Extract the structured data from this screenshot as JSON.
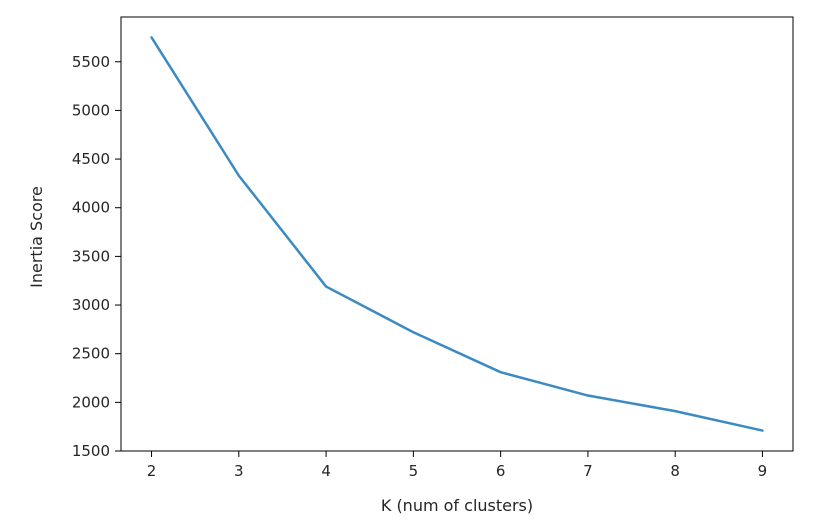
{
  "chart_data": {
    "type": "line",
    "title": "",
    "xlabel": "K (num of clusters)",
    "ylabel": "Inertia Score",
    "x": [
      2,
      3,
      4,
      5,
      6,
      7,
      8,
      9
    ],
    "series": [
      {
        "values": [
          5750,
          4330,
          3190,
          2720,
          2310,
          2070,
          1910,
          1710
        ],
        "color": "#3b8bc2"
      }
    ],
    "xlim": [
      1.65,
      9.35
    ],
    "ylim": [
      1500,
      5960
    ],
    "xticks": [
      2,
      3,
      4,
      5,
      6,
      7,
      8,
      9
    ],
    "yticks": [
      1500,
      2000,
      2500,
      3000,
      3500,
      4000,
      4500,
      5000,
      5500
    ],
    "grid": false,
    "legend": "none"
  }
}
